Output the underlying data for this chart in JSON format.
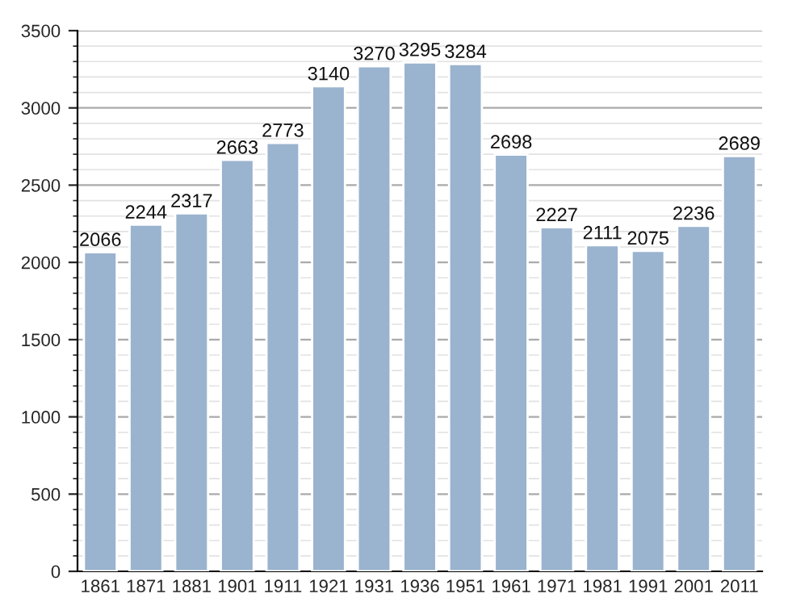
{
  "chart_data": {
    "type": "bar",
    "categories": [
      "1861",
      "1871",
      "1881",
      "1901",
      "1911",
      "1921",
      "1931",
      "1936",
      "1951",
      "1961",
      "1971",
      "1981",
      "1991",
      "2001",
      "2011"
    ],
    "values": [
      2066,
      2244,
      2317,
      2663,
      2773,
      3140,
      3270,
      3295,
      3284,
      2698,
      2227,
      2111,
      2075,
      2236,
      2689
    ],
    "color": "#9ab3cf",
    "ylim": [
      0,
      3500
    ],
    "yticks": [
      0,
      500,
      1000,
      1500,
      2000,
      2500,
      3000,
      3500
    ],
    "grid": "y",
    "data_labels": true
  }
}
